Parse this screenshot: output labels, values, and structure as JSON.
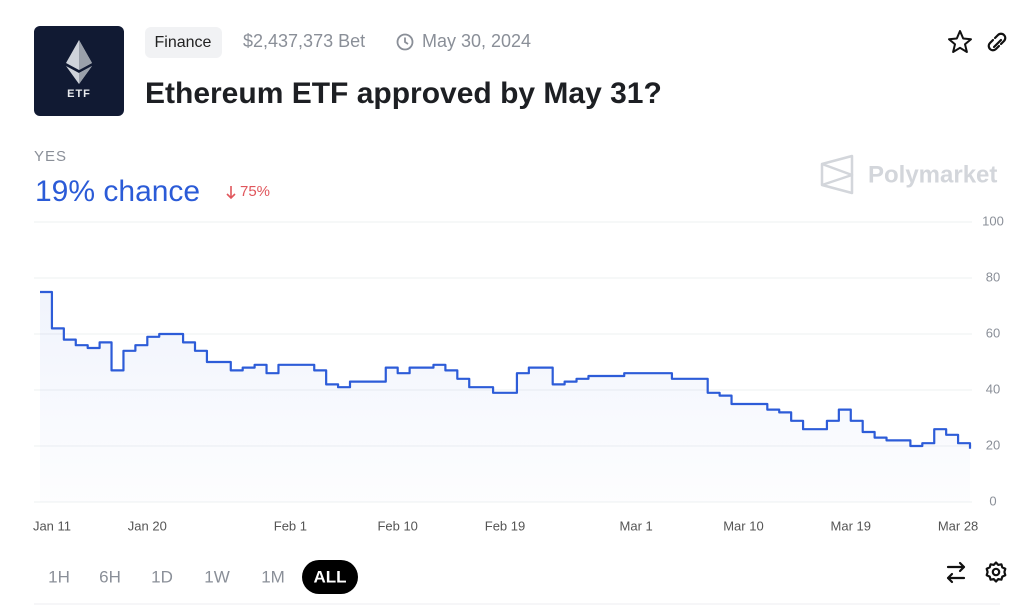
{
  "header": {
    "logo_text": "ETF",
    "tag": "Finance",
    "volume": "$2,437,373 Bet",
    "date": "May 30, 2024",
    "title": "Ethereum ETF approved by May 31?"
  },
  "outcome": {
    "label": "YES",
    "chance": "19% chance",
    "change": "75%"
  },
  "brand": "Polymarket",
  "time_ranges": [
    "1H",
    "6H",
    "1D",
    "1W",
    "1M",
    "ALL"
  ],
  "active_range": "ALL",
  "chart_data": {
    "type": "line",
    "color": "#2d5cd8",
    "x": [
      "Jan 11",
      "Jan 12",
      "Jan 13",
      "Jan 14",
      "Jan 15",
      "Jan 16",
      "Jan 17",
      "Jan 18",
      "Jan 19",
      "Jan 20",
      "Jan 21",
      "Jan 22",
      "Jan 23",
      "Jan 24",
      "Jan 25",
      "Jan 26",
      "Jan 27",
      "Jan 28",
      "Jan 29",
      "Jan 30",
      "Jan 31",
      "Feb 1",
      "Feb 2",
      "Feb 3",
      "Feb 4",
      "Feb 5",
      "Feb 6",
      "Feb 7",
      "Feb 8",
      "Feb 9",
      "Feb 10",
      "Feb 11",
      "Feb 12",
      "Feb 13",
      "Feb 14",
      "Feb 15",
      "Feb 16",
      "Feb 17",
      "Feb 18",
      "Feb 19",
      "Feb 20",
      "Feb 21",
      "Feb 22",
      "Feb 23",
      "Feb 24",
      "Feb 25",
      "Feb 26",
      "Feb 27",
      "Feb 28",
      "Feb 29",
      "Mar 1",
      "Mar 2",
      "Mar 3",
      "Mar 4",
      "Mar 5",
      "Mar 6",
      "Mar 7",
      "Mar 8",
      "Mar 9",
      "Mar 10",
      "Mar 11",
      "Mar 12",
      "Mar 13",
      "Mar 14",
      "Mar 15",
      "Mar 16",
      "Mar 17",
      "Mar 18",
      "Mar 19",
      "Mar 20",
      "Mar 21",
      "Mar 22",
      "Mar 23",
      "Mar 24",
      "Mar 25",
      "Mar 26",
      "Mar 27",
      "Mar 28",
      "Mar 29"
    ],
    "values": [
      75,
      62,
      58,
      56,
      55,
      57,
      47,
      54,
      56,
      59,
      60,
      60,
      57,
      54,
      50,
      50,
      47,
      48,
      49,
      46,
      49,
      49,
      49,
      47,
      42,
      41,
      43,
      43,
      43,
      48,
      46,
      48,
      48,
      49,
      47,
      44,
      41,
      41,
      39,
      39,
      46,
      48,
      48,
      42,
      43,
      44,
      45,
      45,
      45,
      46,
      46,
      46,
      46,
      44,
      44,
      44,
      39,
      38,
      35,
      35,
      35,
      33,
      32,
      29,
      26,
      26,
      29,
      33,
      29,
      25,
      23,
      22,
      22,
      20,
      21,
      26,
      24,
      21,
      19
    ],
    "xlim": [
      "Jan 11",
      "Mar 29"
    ],
    "xticks": [
      "Jan 11",
      "Jan 20",
      "Feb 1",
      "Feb 10",
      "Feb 19",
      "Mar 1",
      "Mar 10",
      "Mar 19",
      "Mar 28"
    ],
    "ylim": [
      0,
      100
    ],
    "yticks": [
      0,
      20,
      40,
      60,
      80,
      100
    ],
    "grid": true
  }
}
